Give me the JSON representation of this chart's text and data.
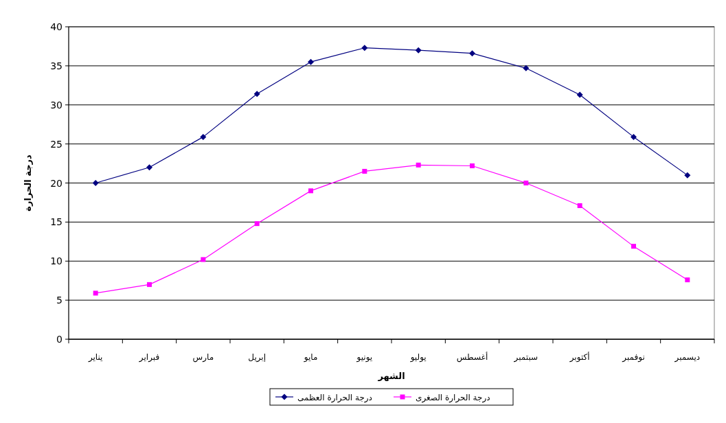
{
  "chart_data": {
    "type": "line",
    "xlabel": "الشهر",
    "ylabel": "درجة الحرارة",
    "categories": [
      "يناير",
      "فبراير",
      "مارس",
      "إبريل",
      "مايو",
      "يونيو",
      "يوليو",
      "أغسطس",
      "سبتمبر",
      "أكتوبر",
      "نوفمبر",
      "ديسمبر"
    ],
    "series": [
      {
        "name": "درجة الحرارة العظمى",
        "color": "#000080",
        "marker": "diamond",
        "values": [
          20.0,
          22.0,
          25.9,
          31.4,
          35.5,
          37.3,
          37.0,
          36.6,
          34.7,
          31.3,
          25.9,
          21.0
        ]
      },
      {
        "name": "درجة الحرارة الصغرى",
        "color": "#ff00ff",
        "marker": "square",
        "values": [
          5.9,
          7.0,
          10.2,
          14.8,
          19.0,
          21.5,
          22.3,
          22.2,
          20.0,
          17.1,
          11.9,
          7.6
        ]
      }
    ],
    "ylim": [
      0,
      40
    ],
    "yticks": [
      0,
      5,
      10,
      15,
      20,
      25,
      30,
      35,
      40
    ],
    "grid": "y",
    "legend": "bottom"
  }
}
